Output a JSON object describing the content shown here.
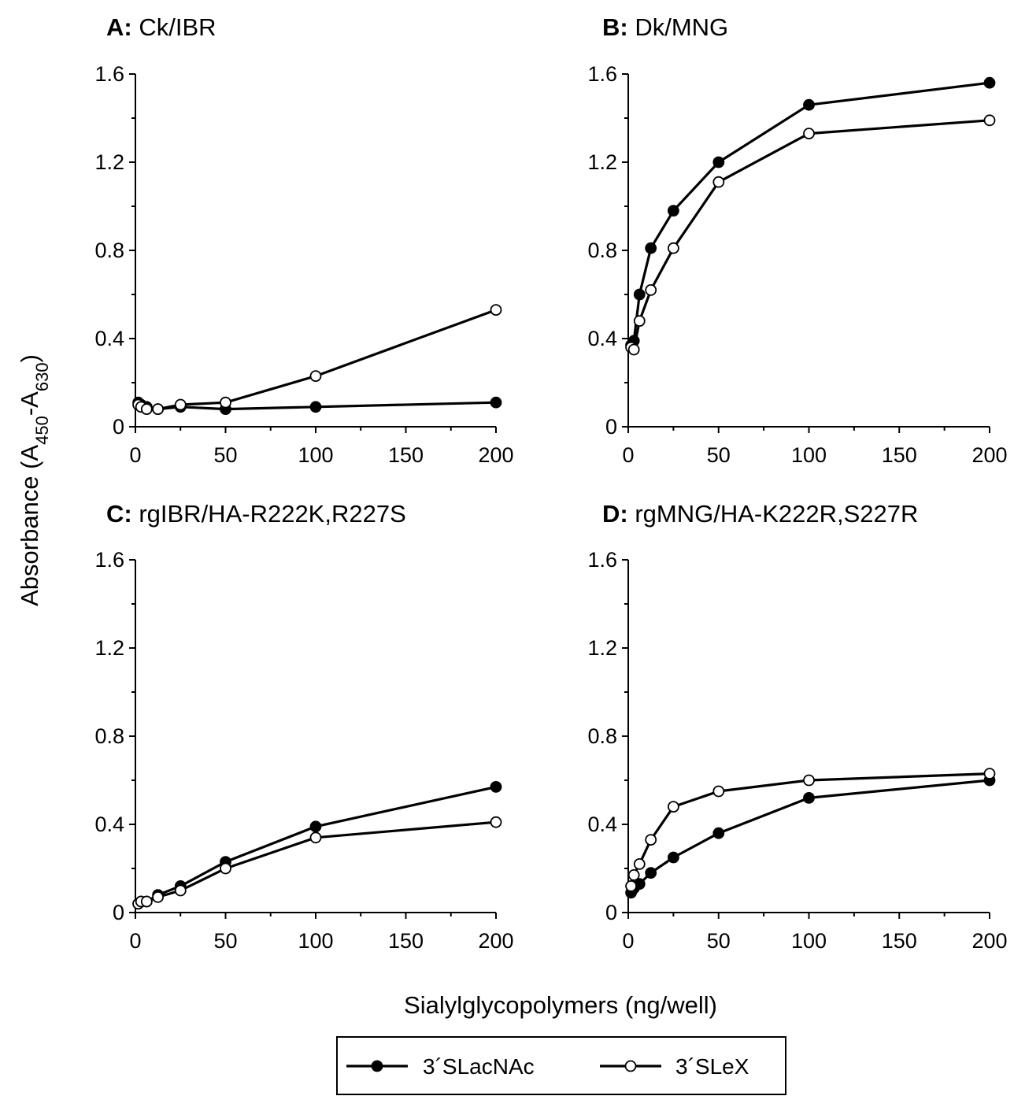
{
  "chart_data": [
    {
      "type": "line",
      "panel_letter": "A:",
      "title": "Ck/IBR",
      "xlim": [
        0,
        200
      ],
      "ylim": [
        0,
        1.6
      ],
      "x_ticks": [
        0,
        50,
        100,
        150,
        200
      ],
      "y_ticks": [
        0,
        0.4,
        0.8,
        1.2,
        1.6
      ],
      "y_tick_labels": [
        "0",
        "0.4",
        "0.8",
        "1.2",
        "1.6"
      ],
      "series": [
        {
          "name": "3´SLacNAc",
          "marker": "filled",
          "x": [
            1.56,
            3.13,
            6.25,
            12.5,
            25,
            50,
            100,
            200
          ],
          "y": [
            0.11,
            0.1,
            0.09,
            0.08,
            0.09,
            0.08,
            0.09,
            0.11
          ]
        },
        {
          "name": "3´SLeX",
          "marker": "open",
          "x": [
            1.56,
            3.13,
            6.25,
            12.5,
            25,
            50,
            100,
            200
          ],
          "y": [
            0.1,
            0.09,
            0.08,
            0.08,
            0.1,
            0.11,
            0.23,
            0.53
          ]
        }
      ]
    },
    {
      "type": "line",
      "panel_letter": "B:",
      "title": "Dk/MNG",
      "xlim": [
        0,
        200
      ],
      "ylim": [
        0,
        1.6
      ],
      "x_ticks": [
        0,
        50,
        100,
        150,
        200
      ],
      "y_ticks": [
        0,
        0.4,
        0.8,
        1.2,
        1.6
      ],
      "y_tick_labels": [
        "0",
        "0.4",
        "0.8",
        "1.2",
        "1.6"
      ],
      "series": [
        {
          "name": "3´SLacNAc",
          "marker": "filled",
          "x": [
            1.56,
            3.13,
            6.25,
            12.5,
            25,
            50,
            100,
            200
          ],
          "y": [
            0.37,
            0.39,
            0.6,
            0.81,
            0.98,
            1.2,
            1.46,
            1.56
          ]
        },
        {
          "name": "3´SLeX",
          "marker": "open",
          "x": [
            1.56,
            3.13,
            6.25,
            12.5,
            25,
            50,
            100,
            200
          ],
          "y": [
            0.36,
            0.35,
            0.48,
            0.62,
            0.81,
            1.11,
            1.33,
            1.39
          ]
        }
      ]
    },
    {
      "type": "line",
      "panel_letter": "C:",
      "title": "rgIBR/HA-R222K,R227S",
      "xlim": [
        0,
        200
      ],
      "ylim": [
        0,
        1.6
      ],
      "x_ticks": [
        0,
        50,
        100,
        150,
        200
      ],
      "y_ticks": [
        0,
        0.4,
        0.8,
        1.2,
        1.6
      ],
      "y_tick_labels": [
        "0",
        "0.4",
        "0.8",
        "1.2",
        "1.6"
      ],
      "series": [
        {
          "name": "3´SLacNAc",
          "marker": "filled",
          "x": [
            1.56,
            3.13,
            6.25,
            12.5,
            25,
            50,
            100,
            200
          ],
          "y": [
            0.04,
            0.05,
            0.05,
            0.08,
            0.12,
            0.23,
            0.39,
            0.57
          ]
        },
        {
          "name": "3´SLeX",
          "marker": "open",
          "x": [
            1.56,
            3.13,
            6.25,
            12.5,
            25,
            50,
            100,
            200
          ],
          "y": [
            0.04,
            0.05,
            0.05,
            0.07,
            0.1,
            0.2,
            0.34,
            0.41
          ]
        }
      ]
    },
    {
      "type": "line",
      "panel_letter": "D:",
      "title": "rgMNG/HA-K222R,S227R",
      "xlim": [
        0,
        200
      ],
      "ylim": [
        0,
        1.6
      ],
      "x_ticks": [
        0,
        50,
        100,
        150,
        200
      ],
      "y_ticks": [
        0,
        0.4,
        0.8,
        1.2,
        1.6
      ],
      "y_tick_labels": [
        "0",
        "0.4",
        "0.8",
        "1.2",
        "1.6"
      ],
      "series": [
        {
          "name": "3´SLacNAc",
          "marker": "filled",
          "x": [
            1.56,
            3.13,
            6.25,
            12.5,
            25,
            50,
            100,
            200
          ],
          "y": [
            0.09,
            0.11,
            0.13,
            0.18,
            0.25,
            0.36,
            0.52,
            0.6
          ]
        },
        {
          "name": "3´SLeX",
          "marker": "open",
          "x": [
            1.56,
            3.13,
            6.25,
            12.5,
            25,
            50,
            100,
            200
          ],
          "y": [
            0.12,
            0.17,
            0.22,
            0.33,
            0.48,
            0.55,
            0.6,
            0.63
          ]
        }
      ]
    }
  ],
  "ylabel": {
    "main": "Absorbance (A",
    "sub1": "450",
    "mid": "-A",
    "sub2": "630",
    "end": ")"
  },
  "xlabel": "Sialylglycopolymers (ng/well)",
  "legend": [
    {
      "label": "3´SLacNAc",
      "marker": "filled"
    },
    {
      "label": "3´SLeX",
      "marker": "open"
    }
  ]
}
